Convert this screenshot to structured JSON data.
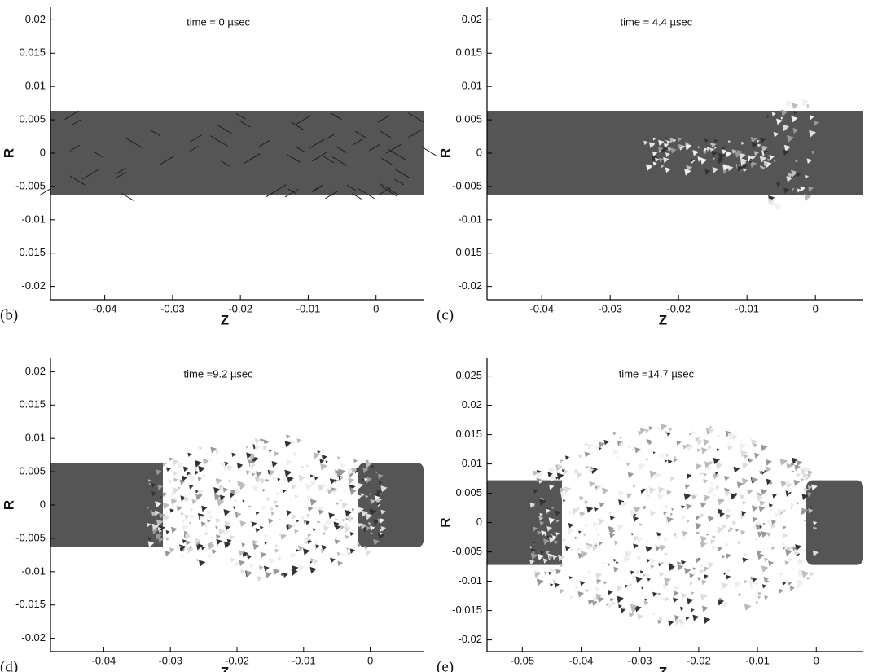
{
  "panels": [
    {
      "label": "(b)",
      "time": "time = 0 µsec",
      "x_label": "Z",
      "y_label": "R",
      "xlim": [
        -0.048,
        0.007
      ],
      "ylim": [
        -0.022,
        0.022
      ],
      "xticks": [
        -0.04,
        -0.03,
        -0.02,
        -0.01,
        0
      ],
      "yticks": [
        -0.02,
        -0.015,
        -0.01,
        -0.005,
        0,
        0.005,
        0.01,
        0.015,
        0.02
      ]
    },
    {
      "label": "(c)",
      "time": "time = 4.4 µsec",
      "x_label": "Z",
      "y_label": "R",
      "xlim": [
        -0.048,
        0.007
      ],
      "ylim": [
        -0.022,
        0.022
      ],
      "xticks": [
        -0.04,
        -0.03,
        -0.02,
        -0.01,
        0
      ],
      "yticks": [
        -0.02,
        -0.015,
        -0.01,
        -0.005,
        0,
        0.005,
        0.01,
        0.015,
        0.02
      ]
    },
    {
      "label": "(d)",
      "time": "time =9.2 µsec",
      "x_label": "Z",
      "y_label": "R",
      "xlim": [
        -0.048,
        0.008
      ],
      "ylim": [
        -0.022,
        0.022
      ],
      "xticks": [
        -0.04,
        -0.03,
        -0.02,
        -0.01,
        0
      ],
      "yticks": [
        -0.02,
        -0.015,
        -0.01,
        -0.005,
        0,
        0.005,
        0.01,
        0.015,
        0.02
      ]
    },
    {
      "label": "(e)",
      "time": "time =14.7 µsec",
      "x_label": "Z",
      "y_label": "R",
      "xlim": [
        -0.056,
        0.008
      ],
      "ylim": [
        -0.022,
        0.028
      ],
      "xticks": [
        -0.05,
        -0.04,
        -0.03,
        -0.02,
        -0.01,
        0
      ],
      "yticks": [
        -0.02,
        -0.015,
        -0.01,
        -0.005,
        0,
        0.005,
        0.01,
        0.015,
        0.02,
        0.025
      ]
    }
  ]
}
